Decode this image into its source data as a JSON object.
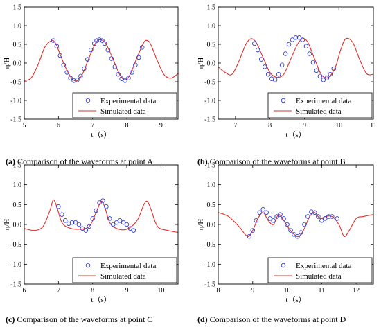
{
  "colors": {
    "experimental": "#2f3bd6",
    "simulated": "#e0302a",
    "axis": "#000000"
  },
  "chart_data": [
    {
      "type": "line",
      "caption_letter": "(a)",
      "caption_text": " Comparison of the waveforms at point A",
      "xlabel": "t（s）",
      "ylabel": "η/H",
      "xlim": [
        5,
        9.5
      ],
      "ylim": [
        -1.5,
        1.5
      ],
      "xticks": [
        "5",
        "6",
        "7",
        "8",
        "9"
      ],
      "yticks": [
        "-1.5",
        "-1.0",
        "-0.5",
        "0.0",
        "0.5",
        "1.0",
        "1.5"
      ],
      "legend": {
        "position": "bottom-right",
        "entries": [
          "Experimental data",
          "Simulated data"
        ]
      },
      "series": [
        {
          "name": "Simulated data",
          "style": "line",
          "x": [
            5,
            5.2,
            5.4,
            5.6,
            5.8,
            5.9,
            6.0,
            6.2,
            6.4,
            6.55,
            6.7,
            6.9,
            7.1,
            7.25,
            7.4,
            7.6,
            7.8,
            7.95,
            8.1,
            8.3,
            8.5,
            8.6,
            8.7,
            8.9,
            9.1,
            9.3,
            9.5
          ],
          "y": [
            -0.47,
            -0.4,
            -0.05,
            0.42,
            0.6,
            0.55,
            0.35,
            -0.1,
            -0.42,
            -0.47,
            -0.3,
            0.15,
            0.55,
            0.62,
            0.5,
            0.1,
            -0.32,
            -0.45,
            -0.3,
            0.15,
            0.55,
            0.6,
            0.5,
            0.05,
            -0.32,
            -0.4,
            -0.28
          ]
        },
        {
          "name": "Experimental data",
          "style": "marker",
          "x": [
            5.85,
            5.95,
            6.05,
            6.15,
            6.25,
            6.35,
            6.45,
            6.55,
            6.65,
            6.75,
            6.85,
            6.95,
            7.05,
            7.12,
            7.2,
            7.28,
            7.35,
            7.45,
            7.55,
            7.65,
            7.75,
            7.85,
            7.95,
            8.05,
            8.15,
            8.25,
            8.35,
            8.45
          ],
          "y": [
            0.6,
            0.45,
            0.2,
            -0.05,
            -0.25,
            -0.4,
            -0.47,
            -0.45,
            -0.35,
            -0.15,
            0.1,
            0.35,
            0.52,
            0.6,
            0.62,
            0.6,
            0.52,
            0.35,
            0.12,
            -0.1,
            -0.3,
            -0.42,
            -0.47,
            -0.4,
            -0.25,
            -0.05,
            0.15,
            0.42
          ]
        }
      ]
    },
    {
      "type": "line",
      "caption_letter": "(b)",
      "caption_text": " Comparison of the waveforms at point B",
      "xlabel": "t（s）",
      "ylabel": "η/H",
      "xlim": [
        6.5,
        11
      ],
      "ylim": [
        -1.5,
        1.5
      ],
      "xticks": [
        "7",
        "8",
        "9",
        "10",
        "11"
      ],
      "yticks": [
        "-1.5",
        "-1.0",
        "-0.5",
        "0.0",
        "0.5",
        "1.0",
        "1.5"
      ],
      "legend": {
        "position": "bottom-right",
        "entries": [
          "Experimental data",
          "Simulated data"
        ]
      },
      "series": [
        {
          "name": "Simulated data",
          "style": "line",
          "x": [
            6.5,
            6.7,
            6.9,
            7.1,
            7.3,
            7.45,
            7.6,
            7.8,
            8.0,
            8.2,
            8.4,
            8.6,
            8.8,
            8.95,
            9.1,
            9.3,
            9.5,
            9.7,
            9.9,
            10.05,
            10.2,
            10.4,
            10.6,
            10.8,
            11.0
          ],
          "y": [
            -0.1,
            -0.25,
            -0.3,
            0.05,
            0.5,
            0.65,
            0.55,
            0.15,
            -0.25,
            -0.38,
            -0.3,
            0.1,
            0.5,
            0.65,
            0.55,
            0.1,
            -0.32,
            -0.38,
            -0.1,
            0.35,
            0.65,
            0.55,
            0.1,
            -0.28,
            -0.3
          ]
        },
        {
          "name": "Experimental data",
          "style": "marker",
          "x": [
            7.55,
            7.65,
            7.75,
            7.85,
            7.95,
            8.05,
            8.15,
            8.25,
            8.35,
            8.45,
            8.55,
            8.65,
            8.75,
            8.85,
            8.95,
            9.05,
            9.15,
            9.25,
            9.35,
            9.45,
            9.55,
            9.65,
            9.75,
            9.85
          ],
          "y": [
            0.52,
            0.35,
            0.1,
            -0.1,
            -0.3,
            -0.42,
            -0.45,
            -0.3,
            -0.05,
            0.25,
            0.5,
            0.62,
            0.68,
            0.68,
            0.62,
            0.45,
            0.25,
            0.02,
            -0.2,
            -0.35,
            -0.45,
            -0.4,
            -0.3,
            -0.15
          ]
        }
      ]
    },
    {
      "type": "line",
      "caption_letter": "(c)",
      "caption_text": " Comparison of the waveforms at point C",
      "xlabel": "t（s）",
      "ylabel": "η/H",
      "xlim": [
        6,
        10.5
      ],
      "ylim": [
        -1.5,
        1.5
      ],
      "xticks": [
        "6",
        "7",
        "8",
        "9",
        "10"
      ],
      "yticks": [
        "-1.5",
        "-1.0",
        "-0.5",
        "0.0",
        "0.5",
        "1.0",
        "1.5"
      ],
      "legend": {
        "position": "bottom-right",
        "entries": [
          "Experimental data",
          "Simulated data"
        ]
      },
      "series": [
        {
          "name": "Simulated data",
          "style": "line",
          "x": [
            6.0,
            6.3,
            6.55,
            6.75,
            6.85,
            6.95,
            7.1,
            7.3,
            7.6,
            7.9,
            8.1,
            8.25,
            8.35,
            8.5,
            8.7,
            9.0,
            9.3,
            9.5,
            9.6,
            9.7,
            9.9,
            10.2,
            10.5
          ],
          "y": [
            -0.1,
            -0.15,
            -0.05,
            0.35,
            0.62,
            0.45,
            0.05,
            -0.08,
            -0.12,
            -0.05,
            0.3,
            0.58,
            0.45,
            0.05,
            -0.1,
            -0.12,
            0.1,
            0.5,
            0.58,
            0.4,
            -0.05,
            -0.15,
            -0.2
          ]
        },
        {
          "name": "Experimental data",
          "style": "marker",
          "x": [
            7.0,
            7.1,
            7.2,
            7.3,
            7.4,
            7.5,
            7.6,
            7.7,
            7.8,
            7.9,
            8.0,
            8.1,
            8.2,
            8.3,
            8.4,
            8.5,
            8.6,
            8.7,
            8.8,
            8.9,
            9.0,
            9.1,
            9.2
          ],
          "y": [
            0.45,
            0.25,
            0.1,
            0.02,
            0.05,
            0.05,
            0.0,
            -0.1,
            -0.15,
            -0.05,
            0.15,
            0.35,
            0.55,
            0.6,
            0.45,
            0.15,
            0.0,
            0.05,
            0.1,
            0.05,
            0.0,
            -0.1,
            -0.15
          ]
        }
      ]
    },
    {
      "type": "line",
      "caption_letter": "(d)",
      "caption_text": " Comparison of the waveforms at point D",
      "xlabel": "t（s）",
      "ylabel": "η/H",
      "xlim": [
        8,
        12.5
      ],
      "ylim": [
        -1.5,
        1.5
      ],
      "xticks": [
        "8",
        "9",
        "10",
        "11",
        "12"
      ],
      "yticks": [
        "-1.5",
        "-1.0",
        "-0.5",
        "0.0",
        "0.5",
        "1.0",
        "1.5"
      ],
      "legend": {
        "position": "bottom-right",
        "entries": [
          "Experimental data",
          "Simulated data"
        ]
      },
      "series": [
        {
          "name": "Simulated data",
          "style": "line",
          "x": [
            8.0,
            8.3,
            8.6,
            8.85,
            9.0,
            9.15,
            9.3,
            9.45,
            9.6,
            9.75,
            9.9,
            10.05,
            10.2,
            10.35,
            10.5,
            10.65,
            10.8,
            10.95,
            11.1,
            11.3,
            11.5,
            11.65,
            11.8,
            12.0,
            12.2,
            12.5
          ],
          "y": [
            0.3,
            0.2,
            -0.05,
            -0.3,
            -0.15,
            0.15,
            0.3,
            0.1,
            0.0,
            0.25,
            0.1,
            -0.1,
            -0.25,
            -0.3,
            -0.1,
            0.2,
            0.3,
            0.15,
            0.2,
            0.2,
            0.0,
            -0.3,
            -0.15,
            0.15,
            0.2,
            0.25
          ]
        },
        {
          "name": "Experimental data",
          "style": "marker",
          "x": [
            8.9,
            9.0,
            9.1,
            9.2,
            9.3,
            9.4,
            9.5,
            9.6,
            9.7,
            9.8,
            9.9,
            10.0,
            10.1,
            10.2,
            10.3,
            10.4,
            10.5,
            10.6,
            10.7,
            10.8,
            10.9,
            11.0,
            11.1,
            11.2,
            11.3,
            11.45
          ],
          "y": [
            -0.3,
            -0.15,
            0.1,
            0.3,
            0.38,
            0.3,
            0.15,
            0.1,
            0.2,
            0.25,
            0.15,
            0.0,
            -0.15,
            -0.25,
            -0.3,
            -0.2,
            0.0,
            0.2,
            0.32,
            0.3,
            0.2,
            0.1,
            0.15,
            0.2,
            0.2,
            0.15
          ]
        }
      ]
    }
  ]
}
